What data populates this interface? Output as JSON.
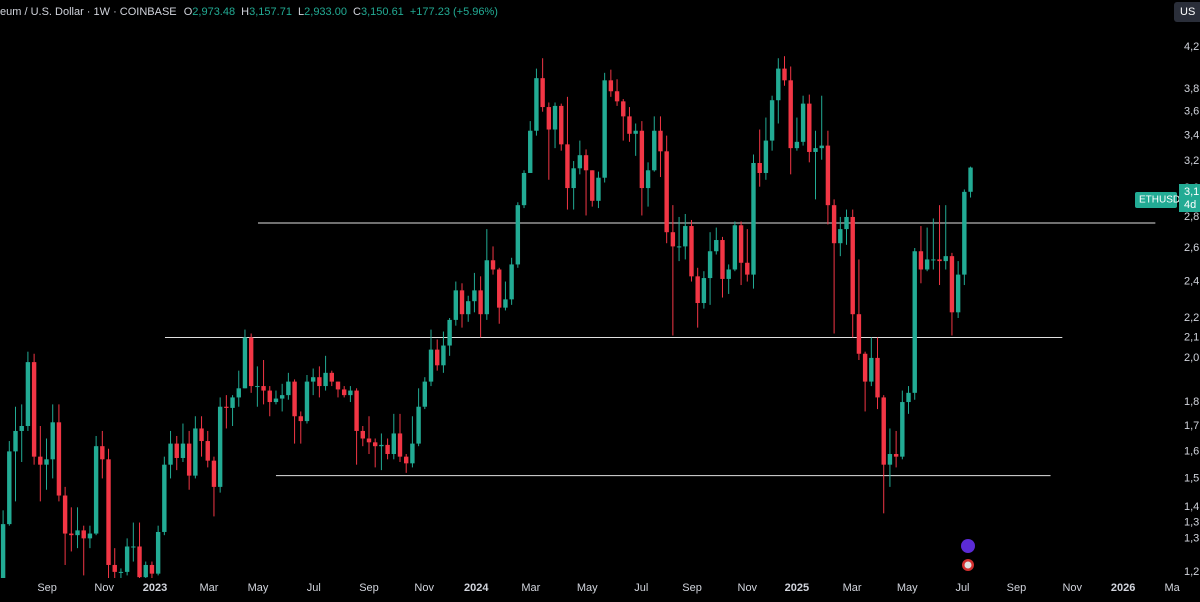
{
  "header": {
    "symbol": "eum / U.S. Dollar · 1W · COINBASE",
    "o_label": "O",
    "open": "2,973.48",
    "h_label": "H",
    "high": "3,157.71",
    "l_label": "L",
    "low": "2,933.00",
    "c_label": "C",
    "close": "3,150.61",
    "change": "+177.23 (+5.96%)"
  },
  "price_tag": {
    "symbol": "ETHUSD",
    "price": "3,1",
    "countdown": "4d"
  },
  "currency_button": "US",
  "chart_data": {
    "type": "candlestick",
    "up_color": "#22ab94",
    "down_color": "#f23645",
    "log_scale": true,
    "grid": false,
    "xlim": [
      0,
      193.5
    ],
    "ylim": [
      1177,
      4700
    ],
    "xticks": [
      {
        "value": 7.6,
        "label": "Sep"
      },
      {
        "value": 16.8,
        "label": "Nov"
      },
      {
        "value": 25,
        "label": "2023"
      },
      {
        "value": 33.7,
        "label": "Mar"
      },
      {
        "value": 41.6,
        "label": "May"
      },
      {
        "value": 50.6,
        "label": "Jul"
      },
      {
        "value": 59.5,
        "label": "Sep"
      },
      {
        "value": 68.4,
        "label": "Nov"
      },
      {
        "value": 76.8,
        "label": "2024"
      },
      {
        "value": 85.6,
        "label": "Mar"
      },
      {
        "value": 94.7,
        "label": "May"
      },
      {
        "value": 103.4,
        "label": "Jul"
      },
      {
        "value": 111.6,
        "label": "Sep"
      },
      {
        "value": 120.5,
        "label": "Nov"
      },
      {
        "value": 128.5,
        "label": "2025"
      },
      {
        "value": 137.4,
        "label": "Mar"
      },
      {
        "value": 146.3,
        "label": "May"
      },
      {
        "value": 155.2,
        "label": "Jul"
      },
      {
        "value": 163.9,
        "label": "Sep"
      },
      {
        "value": 172.9,
        "label": "Nov"
      },
      {
        "value": 181.1,
        "label": "2026"
      },
      {
        "value": 189,
        "label": "Ma"
      }
    ],
    "yticks": [
      {
        "value": 4200,
        "label": "4,2"
      },
      {
        "value": 3800,
        "label": "3,8"
      },
      {
        "value": 3600,
        "label": "3,6"
      },
      {
        "value": 3400,
        "label": "3,4"
      },
      {
        "value": 3200,
        "label": "3,2"
      },
      {
        "value": 3000,
        "label": "3,0"
      },
      {
        "value": 2800,
        "label": "2,8"
      },
      {
        "value": 2600,
        "label": "2,6"
      },
      {
        "value": 2400,
        "label": "2,4"
      },
      {
        "value": 2200,
        "label": "2,2"
      },
      {
        "value": 2100,
        "label": "2,1"
      },
      {
        "value": 2000,
        "label": "2,0"
      },
      {
        "value": 1800,
        "label": "1,8"
      },
      {
        "value": 1700,
        "label": "1,7"
      },
      {
        "value": 1600,
        "label": "1,6"
      },
      {
        "value": 1500,
        "label": "1,5"
      },
      {
        "value": 1400,
        "label": "1,4"
      },
      {
        "value": 1350,
        "label": "1,3"
      },
      {
        "value": 1300,
        "label": "1,3"
      },
      {
        "value": 1200,
        "label": "1,2"
      }
    ],
    "hlines": [
      {
        "value": 2760,
        "x": [
          41.6,
          186.3
        ]
      },
      {
        "value": 2100,
        "x": [
          26.6,
          171.3
        ]
      },
      {
        "value": 1510,
        "x": [
          44.5,
          169.4
        ]
      }
    ],
    "x": [
      0.5,
      1.5,
      2.5,
      3.5,
      4.5,
      5.5,
      6.5,
      7.5,
      8.5,
      9.5,
      10.5,
      11.5,
      12.5,
      13.5,
      14.5,
      15.5,
      16.5,
      17.5,
      18.5,
      19.5,
      20.5,
      21.5,
      22.5,
      23.5,
      24.5,
      25.5,
      26.5,
      27.5,
      28.5,
      29.5,
      30.5,
      31.5,
      32.5,
      33.5,
      34.5,
      35.5,
      36.5,
      37.5,
      38.5,
      39.5,
      40.5,
      41.5,
      42.5,
      43.5,
      44.5,
      45.5,
      46.5,
      47.5,
      48.5,
      49.5,
      50.5,
      51.5,
      52.5,
      53.5,
      54.5,
      55.5,
      56.5,
      57.5,
      58.5,
      59.5,
      60.5,
      61.5,
      62.5,
      63.5,
      64.5,
      65.5,
      66.5,
      67.5,
      68.5,
      69.5,
      70.5,
      71.5,
      72.5,
      73.5,
      74.5,
      75.5,
      76.5,
      77.5,
      78.5,
      79.5,
      80.5,
      81.5,
      82.5,
      83.5,
      84.5,
      85.5,
      86.5,
      87.5,
      88.5,
      89.5,
      90.5,
      91.5,
      92.5,
      93.5,
      94.5,
      95.5,
      96.5,
      97.5,
      98.5,
      99.5,
      100.5,
      101.5,
      102.5,
      103.5,
      104.5,
      105.5,
      106.5,
      107.5,
      108.5,
      109.5,
      110.5,
      111.5,
      112.5,
      113.5,
      114.5,
      115.5,
      116.5,
      117.5,
      118.5,
      119.5,
      120.5,
      121.5,
      122.5,
      123.5,
      124.5,
      125.5,
      126.5,
      127.5,
      128.5,
      129.5,
      130.5,
      131.5,
      132.5,
      133.5,
      134.5,
      135.5,
      136.5,
      137.5,
      138.5,
      139.5,
      140.5,
      141.5,
      142.5,
      143.5,
      144.5,
      145.5,
      146.5,
      147.5,
      148.5,
      149.5,
      150.5,
      151.5,
      152.5,
      153.5,
      154.5,
      155.5,
      156.5
    ],
    "candles": [
      [
        1170,
        1390,
        1080,
        1345
      ],
      [
        1345,
        1640,
        1340,
        1600
      ],
      [
        1600,
        1780,
        1420,
        1680
      ],
      [
        1680,
        1790,
        1560,
        1700
      ],
      [
        1700,
        2030,
        1680,
        1980
      ],
      [
        1980,
        2020,
        1550,
        1580
      ],
      [
        1580,
        1700,
        1420,
        1550
      ],
      [
        1550,
        1650,
        1460,
        1570
      ],
      [
        1570,
        1790,
        1500,
        1715
      ],
      [
        1715,
        1790,
        1420,
        1440
      ],
      [
        1440,
        1470,
        1220,
        1315
      ],
      [
        1315,
        1400,
        1260,
        1310
      ],
      [
        1310,
        1400,
        1270,
        1325
      ],
      [
        1325,
        1340,
        1190,
        1300
      ],
      [
        1300,
        1340,
        1270,
        1315
      ],
      [
        1315,
        1660,
        1310,
        1620
      ],
      [
        1620,
        1680,
        1500,
        1570
      ],
      [
        1570,
        1610,
        1070,
        1220
      ],
      [
        1220,
        1270,
        1170,
        1200
      ],
      [
        1200,
        1210,
        1080,
        1200
      ],
      [
        1200,
        1300,
        1190,
        1275
      ],
      [
        1275,
        1350,
        1230,
        1275
      ],
      [
        1275,
        1350,
        1160,
        1185
      ],
      [
        1185,
        1230,
        1150,
        1220
      ],
      [
        1220,
        1230,
        1180,
        1195
      ],
      [
        1195,
        1340,
        1190,
        1320
      ],
      [
        1320,
        1580,
        1310,
        1550
      ],
      [
        1550,
        1680,
        1500,
        1630
      ],
      [
        1630,
        1660,
        1530,
        1575
      ],
      [
        1575,
        1710,
        1560,
        1630
      ],
      [
        1630,
        1680,
        1460,
        1510
      ],
      [
        1510,
        1740,
        1500,
        1690
      ],
      [
        1690,
        1740,
        1580,
        1640
      ],
      [
        1640,
        1680,
        1540,
        1565
      ],
      [
        1565,
        1580,
        1370,
        1470
      ],
      [
        1470,
        1820,
        1450,
        1780
      ],
      [
        1780,
        1830,
        1690,
        1775
      ],
      [
        1775,
        1830,
        1700,
        1820
      ],
      [
        1820,
        1940,
        1780,
        1860
      ],
      [
        1860,
        2140,
        1860,
        2100
      ],
      [
        2100,
        2120,
        1840,
        1870
      ],
      [
        1870,
        1960,
        1780,
        1870
      ],
      [
        1870,
        1990,
        1790,
        1850
      ],
      [
        1850,
        1870,
        1740,
        1800
      ],
      [
        1800,
        1850,
        1790,
        1815
      ],
      [
        1815,
        1880,
        1760,
        1830
      ],
      [
        1830,
        1930,
        1810,
        1890
      ],
      [
        1890,
        1900,
        1630,
        1740
      ],
      [
        1740,
        1760,
        1630,
        1720
      ],
      [
        1720,
        1920,
        1710,
        1890
      ],
      [
        1890,
        1950,
        1830,
        1910
      ],
      [
        1910,
        1960,
        1820,
        1870
      ],
      [
        1870,
        2010,
        1850,
        1930
      ],
      [
        1930,
        1940,
        1870,
        1890
      ],
      [
        1890,
        1890,
        1820,
        1855
      ],
      [
        1855,
        1870,
        1820,
        1830
      ],
      [
        1830,
        1870,
        1800,
        1850
      ],
      [
        1850,
        1860,
        1550,
        1680
      ],
      [
        1680,
        1700,
        1620,
        1650
      ],
      [
        1650,
        1740,
        1590,
        1635
      ],
      [
        1635,
        1650,
        1540,
        1620
      ],
      [
        1620,
        1670,
        1530,
        1625
      ],
      [
        1625,
        1650,
        1570,
        1590
      ],
      [
        1590,
        1750,
        1570,
        1670
      ],
      [
        1670,
        1750,
        1560,
        1580
      ],
      [
        1580,
        1590,
        1520,
        1555
      ],
      [
        1555,
        1740,
        1540,
        1630
      ],
      [
        1630,
        1860,
        1620,
        1780
      ],
      [
        1780,
        1910,
        1770,
        1890
      ],
      [
        1890,
        2140,
        1870,
        2040
      ],
      [
        2040,
        2090,
        1940,
        1965
      ],
      [
        1965,
        2130,
        1930,
        2060
      ],
      [
        2060,
        2200,
        2010,
        2190
      ],
      [
        2190,
        2400,
        2160,
        2350
      ],
      [
        2350,
        2390,
        2150,
        2220
      ],
      [
        2220,
        2320,
        2180,
        2290
      ],
      [
        2290,
        2450,
        2230,
        2350
      ],
      [
        2350,
        2430,
        2100,
        2220
      ],
      [
        2220,
        2720,
        2190,
        2525
      ],
      [
        2525,
        2610,
        2440,
        2470
      ],
      [
        2470,
        2480,
        2170,
        2255
      ],
      [
        2255,
        2400,
        2240,
        2300
      ],
      [
        2300,
        2540,
        2270,
        2500
      ],
      [
        2500,
        2900,
        2480,
        2880
      ],
      [
        2880,
        3130,
        2860,
        3110
      ],
      [
        3110,
        3520,
        3110,
        3440
      ],
      [
        3440,
        3990,
        3400,
        3900
      ],
      [
        3900,
        4090,
        3600,
        3640
      ],
      [
        3640,
        3680,
        3060,
        3450
      ],
      [
        3450,
        3680,
        3300,
        3650
      ],
      [
        3650,
        3670,
        3280,
        3330
      ],
      [
        3330,
        3730,
        2850,
        3000
      ],
      [
        3000,
        3200,
        2850,
        3145
      ],
      [
        3145,
        3360,
        3100,
        3245
      ],
      [
        3245,
        3290,
        2810,
        3130
      ],
      [
        3130,
        3130,
        2870,
        2910
      ],
      [
        2910,
        3120,
        2860,
        3075
      ],
      [
        3075,
        3950,
        3040,
        3880
      ],
      [
        3880,
        3980,
        3730,
        3780
      ],
      [
        3780,
        3890,
        3650,
        3690
      ],
      [
        3690,
        3710,
        3360,
        3560
      ],
      [
        3560,
        3640,
        3350,
        3415
      ],
      [
        3415,
        3500,
        3240,
        3440
      ],
      [
        3440,
        3520,
        2810,
        3000
      ],
      [
        3000,
        3190,
        2870,
        3130
      ],
      [
        3130,
        3560,
        3120,
        3440
      ],
      [
        3440,
        3560,
        3080,
        3275
      ],
      [
        3275,
        3400,
        2630,
        2700
      ],
      [
        2700,
        2880,
        2110,
        2610
      ],
      [
        2610,
        2800,
        2520,
        2610
      ],
      [
        2610,
        2820,
        2530,
        2740
      ],
      [
        2740,
        2780,
        2400,
        2430
      ],
      [
        2430,
        2480,
        2150,
        2280
      ],
      [
        2280,
        2460,
        2250,
        2420
      ],
      [
        2420,
        2700,
        2270,
        2580
      ],
      [
        2580,
        2730,
        2560,
        2650
      ],
      [
        2650,
        2670,
        2310,
        2415
      ],
      [
        2415,
        2500,
        2330,
        2470
      ],
      [
        2470,
        2770,
        2460,
        2745
      ],
      [
        2745,
        2770,
        2380,
        2510
      ],
      [
        2510,
        2720,
        2400,
        2440
      ],
      [
        2440,
        3250,
        2360,
        3185
      ],
      [
        3185,
        3450,
        3010,
        3110
      ],
      [
        3110,
        3550,
        3060,
        3360
      ],
      [
        3360,
        3740,
        3280,
        3700
      ],
      [
        3700,
        4090,
        3500,
        3990
      ],
      [
        3990,
        4110,
        3830,
        3880
      ],
      [
        3880,
        4010,
        3100,
        3300
      ],
      [
        3300,
        3550,
        3280,
        3350
      ],
      [
        3350,
        3740,
        3320,
        3670
      ],
      [
        3670,
        3750,
        3190,
        3270
      ],
      [
        3270,
        3440,
        2920,
        3300
      ],
      [
        3300,
        3740,
        3210,
        3320
      ],
      [
        3320,
        3440,
        2750,
        2880
      ],
      [
        2880,
        2920,
        2120,
        2630
      ],
      [
        2630,
        2800,
        2550,
        2720
      ],
      [
        2720,
        2850,
        2620,
        2800
      ],
      [
        2800,
        2850,
        2100,
        2220
      ],
      [
        2220,
        2530,
        1990,
        2020
      ],
      [
        2020,
        2030,
        1760,
        1890
      ],
      [
        1890,
        2100,
        1870,
        2000
      ],
      [
        2000,
        2100,
        1770,
        1820
      ],
      [
        1820,
        1830,
        1380,
        1550
      ],
      [
        1550,
        1690,
        1470,
        1590
      ],
      [
        1590,
        1680,
        1540,
        1580
      ],
      [
        1580,
        1850,
        1570,
        1800
      ],
      [
        1800,
        1870,
        1750,
        1840
      ],
      [
        1840,
        2600,
        1810,
        2580
      ],
      [
        2580,
        2740,
        2390,
        2470
      ],
      [
        2470,
        2730,
        2460,
        2530
      ],
      [
        2530,
        2790,
        2470,
        2530
      ],
      [
        2530,
        2880,
        2380,
        2520
      ],
      [
        2520,
        2880,
        2470,
        2550
      ],
      [
        2550,
        2570,
        2110,
        2230
      ],
      [
        2230,
        2520,
        2200,
        2440
      ],
      [
        2440,
        2990,
        2380,
        2973
      ],
      [
        2973.48,
        3157.71,
        2933,
        3150.61
      ]
    ]
  }
}
